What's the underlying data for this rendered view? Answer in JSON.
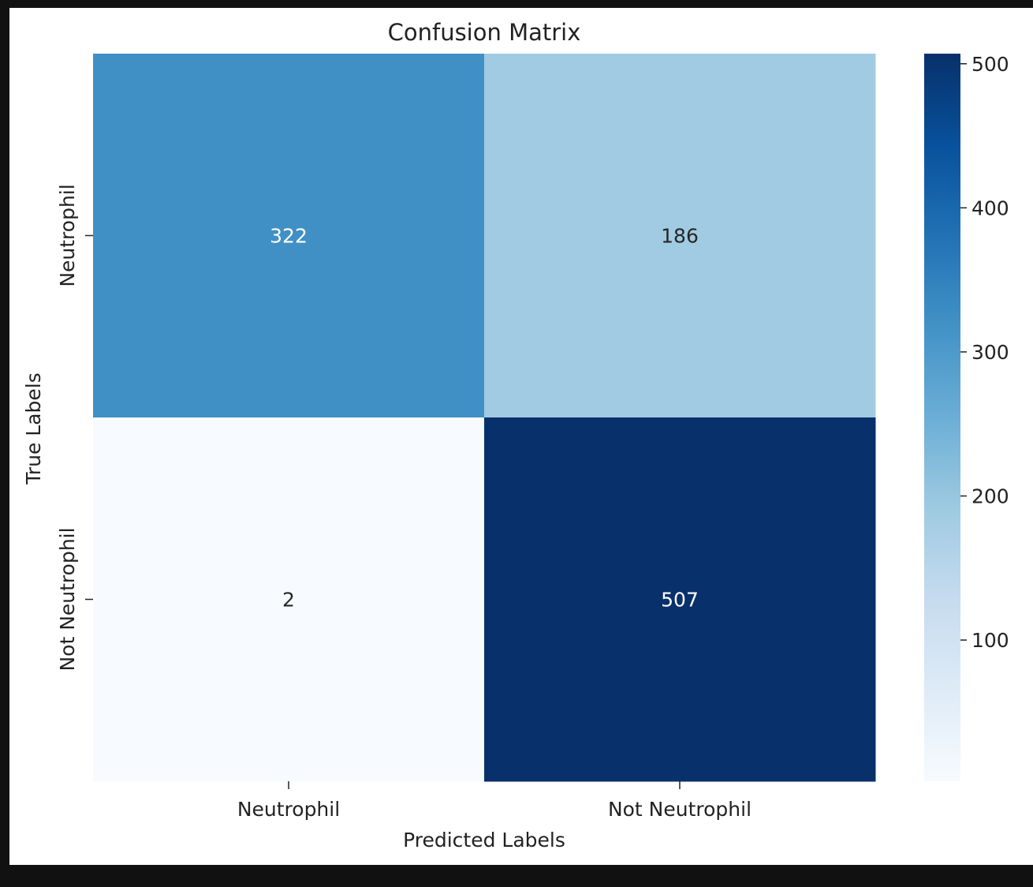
{
  "chart_data": {
    "type": "heatmap",
    "title": "Confusion Matrix",
    "xlabel": "Predicted Labels",
    "ylabel": "True Labels",
    "x_categories": [
      "Neutrophil",
      "Not Neutrophil"
    ],
    "y_categories": [
      "Neutrophil",
      "Not Neutrophil"
    ],
    "values": [
      [
        322,
        186
      ],
      [
        2,
        507
      ]
    ],
    "colormap": "Blues",
    "colorbar": {
      "vmin": 2,
      "vmax": 507,
      "ticks": [
        100,
        200,
        300,
        400,
        500
      ],
      "tick_labels": [
        "100",
        "200",
        "300",
        "400",
        "500"
      ]
    },
    "grid": false
  },
  "page": {
    "background": "#111111",
    "canvas_background": "#ffffff"
  }
}
